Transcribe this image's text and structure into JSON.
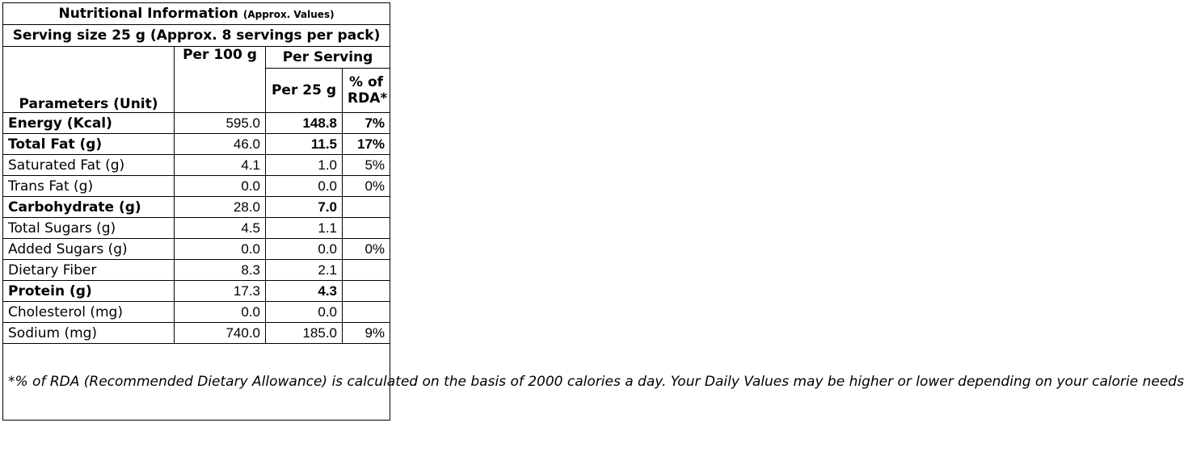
{
  "title": "Nutritional Information",
  "title_note": "(Approx. Values)",
  "serving_size": "Serving size 25 g (Approx. 8 servings per pack)",
  "headers": {
    "parameters": "Parameters (Unit)",
    "per_100g": "Per 100 g",
    "per_serving": "Per Serving",
    "per_25g": "Per 25 g",
    "rda_line1": "% of",
    "rda_line2": "RDA*"
  },
  "rows": [
    {
      "name": "Energy (Kcal)",
      "per100": "595.0",
      "serving": "148.8",
      "rda": "7%",
      "bold": true
    },
    {
      "name": "Total Fat (g)",
      "per100": "46.0",
      "serving": "11.5",
      "rda": "17%",
      "bold": true
    },
    {
      "name": "Saturated Fat (g)",
      "per100": "4.1",
      "serving": "1.0",
      "rda": "5%",
      "bold": false
    },
    {
      "name": "Trans Fat (g)",
      "per100": "0.0",
      "serving": "0.0",
      "rda": "0%",
      "bold": false
    },
    {
      "name": "Carbohydrate (g)",
      "per100": "28.0",
      "serving": "7.0",
      "rda": "",
      "bold": true
    },
    {
      "name": "Total Sugars (g)",
      "per100": "4.5",
      "serving": "1.1",
      "rda": "",
      "bold": false
    },
    {
      "name": "Added Sugars (g)",
      "per100": "0.0",
      "serving": "0.0",
      "rda": "0%",
      "bold": false
    },
    {
      "name": "Dietary Fiber",
      "per100": "8.3",
      "serving": "2.1",
      "rda": "",
      "bold": false
    },
    {
      "name": "Protein (g)",
      "per100": "17.3",
      "serving": "4.3",
      "rda": "",
      "bold": true
    },
    {
      "name": "Cholesterol (mg)",
      "per100": "0.0",
      "serving": "0.0",
      "rda": "",
      "bold": false
    },
    {
      "name": "Sodium (mg)",
      "per100": "740.0",
      "serving": "185.0",
      "rda": "9%",
      "bold": false
    }
  ],
  "footnote": "*% of RDA (Recommended Dietary Allowance) is calculated on the basis of 2000 calories a day. Your Daily Values may be higher or lower depending on your calorie needs"
}
